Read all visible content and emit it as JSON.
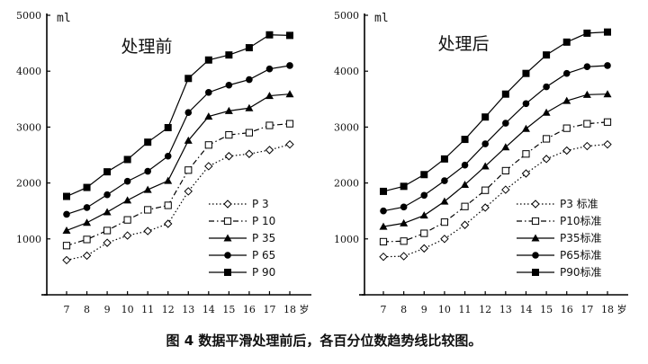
{
  "caption": "图 4  数据平滑处理前后，各百分位数趋势线比较图。",
  "chart_data": [
    {
      "type": "line",
      "title": "处理前",
      "ylabel": "ml",
      "xlabel": "岁",
      "x": [
        7,
        8,
        9,
        10,
        11,
        12,
        13,
        14,
        15,
        16,
        17,
        18
      ],
      "ylim": [
        0,
        5000
      ],
      "yticks": [
        1000,
        2000,
        3000,
        4000,
        5000
      ],
      "series": [
        {
          "name": "P 3",
          "marker": "diamond-open",
          "dash": "dot",
          "values": [
            620,
            700,
            930,
            1060,
            1140,
            1270,
            1850,
            2300,
            2480,
            2520,
            2590,
            2690
          ]
        },
        {
          "name": "P 10",
          "marker": "square-open",
          "dash": "dashdot",
          "values": [
            880,
            990,
            1150,
            1340,
            1520,
            1600,
            2230,
            2680,
            2860,
            2900,
            3030,
            3060
          ]
        },
        {
          "name": "P 35",
          "marker": "triangle",
          "dash": "solid",
          "values": [
            1150,
            1290,
            1480,
            1690,
            1880,
            2040,
            2760,
            3190,
            3290,
            3340,
            3560,
            3590
          ]
        },
        {
          "name": "P 65",
          "marker": "circle",
          "dash": "solid",
          "values": [
            1440,
            1560,
            1790,
            2030,
            2210,
            2480,
            3260,
            3620,
            3750,
            3850,
            4040,
            4100
          ]
        },
        {
          "name": "P 90",
          "marker": "square",
          "dash": "solid",
          "values": [
            1760,
            1920,
            2200,
            2420,
            2730,
            2990,
            3870,
            4200,
            4290,
            4420,
            4650,
            4640
          ]
        }
      ]
    },
    {
      "type": "line",
      "title": "处理后",
      "ylabel": "ml",
      "xlabel": "岁",
      "x": [
        7,
        8,
        9,
        10,
        11,
        12,
        13,
        14,
        15,
        16,
        17,
        18
      ],
      "ylim": [
        0,
        5000
      ],
      "yticks": [
        1000,
        2000,
        3000,
        4000,
        5000
      ],
      "series": [
        {
          "name": "P3 标准",
          "marker": "diamond-open",
          "dash": "dot",
          "values": [
            680,
            690,
            830,
            1000,
            1250,
            1560,
            1880,
            2170,
            2430,
            2580,
            2660,
            2690
          ]
        },
        {
          "name": "P10标准",
          "marker": "square-open",
          "dash": "dashdot",
          "values": [
            950,
            960,
            1100,
            1300,
            1580,
            1870,
            2220,
            2520,
            2790,
            2980,
            3060,
            3090
          ]
        },
        {
          "name": "P35标准",
          "marker": "triangle",
          "dash": "solid",
          "values": [
            1220,
            1280,
            1420,
            1670,
            1970,
            2300,
            2640,
            2970,
            3260,
            3470,
            3580,
            3590
          ]
        },
        {
          "name": "P65标准",
          "marker": "circle",
          "dash": "solid",
          "values": [
            1500,
            1570,
            1780,
            2040,
            2320,
            2700,
            3070,
            3420,
            3720,
            3960,
            4080,
            4100
          ]
        },
        {
          "name": "P90标准",
          "marker": "square",
          "dash": "solid",
          "values": [
            1850,
            1940,
            2150,
            2430,
            2780,
            3180,
            3590,
            3960,
            4290,
            4520,
            4680,
            4700
          ]
        }
      ]
    }
  ]
}
